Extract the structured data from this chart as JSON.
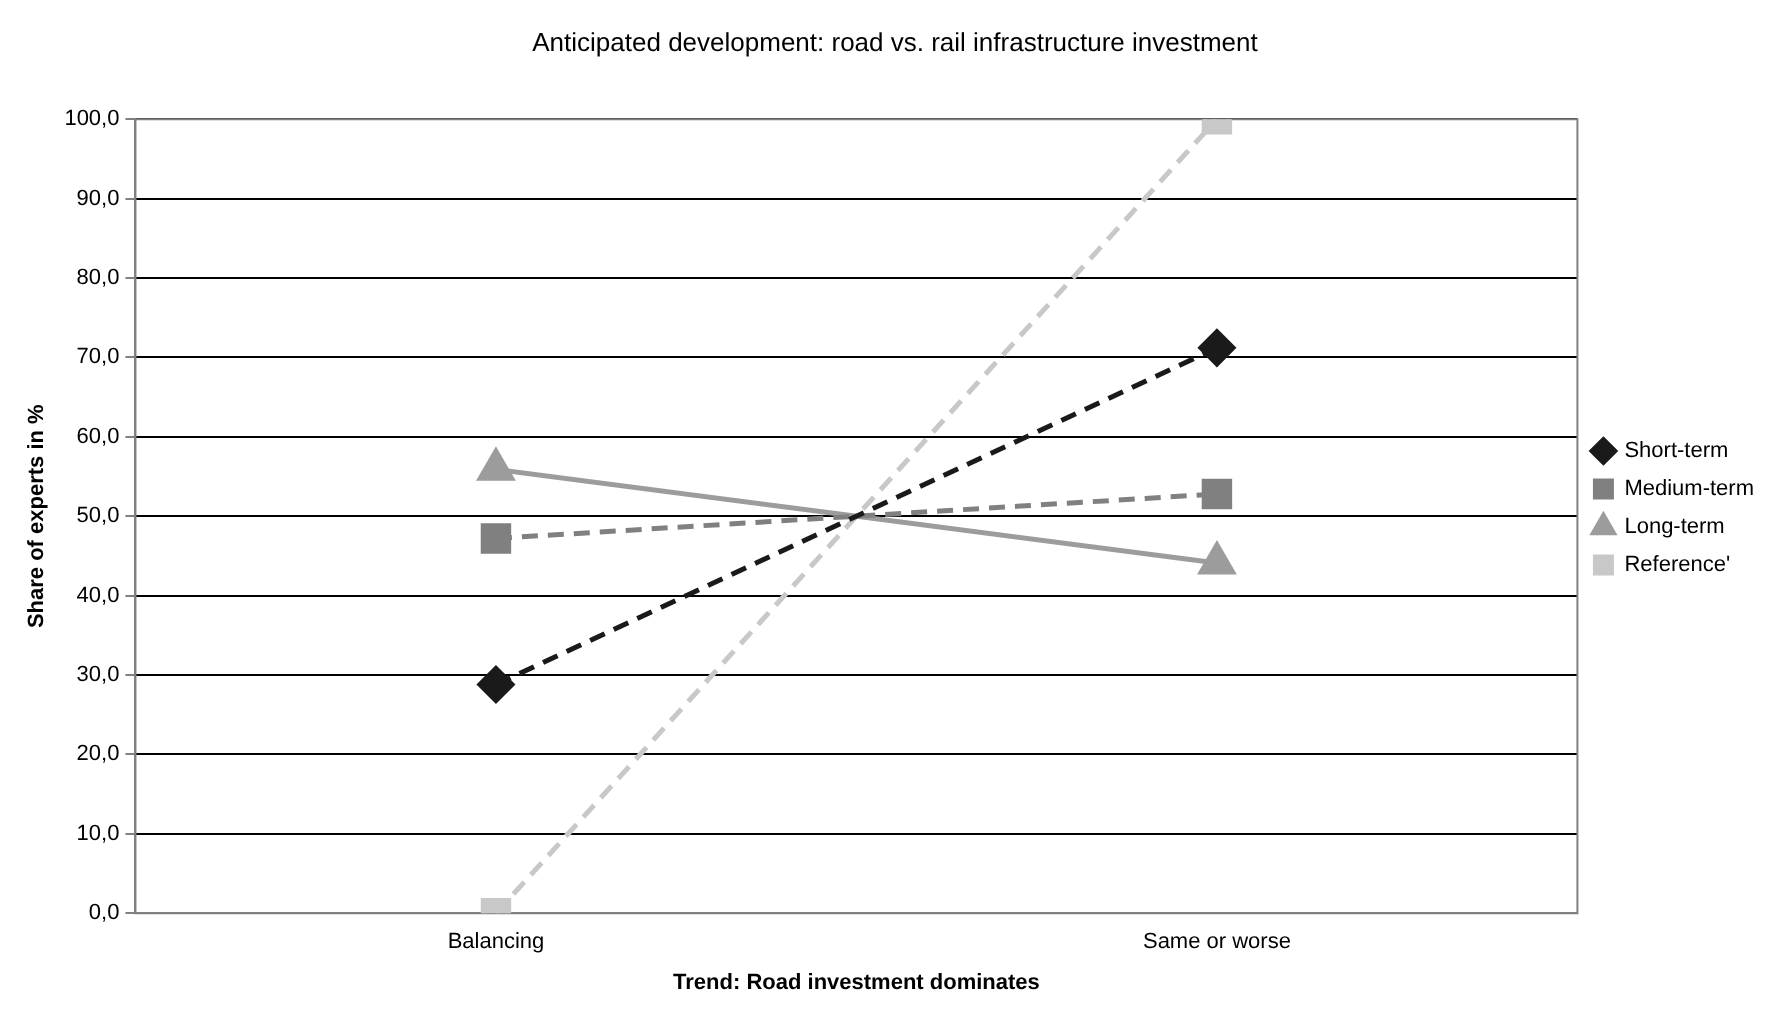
{
  "chart_data": {
    "type": "line",
    "title": "Anticipated development: road vs. rail infrastructure investment",
    "xlabel": "Trend: Road investment dominates",
    "ylabel": "Share of experts in %",
    "categories": [
      "Balancing",
      "Same or worse"
    ],
    "series": [
      {
        "name": "Short-term",
        "color": "#1a1a1a",
        "values": [
          28.8,
          71.2
        ],
        "marker": "diamond",
        "line_style": "dashed"
      },
      {
        "name": "Medium-term",
        "color": "#808080",
        "values": [
          47.2,
          52.8
        ],
        "marker": "square",
        "line_style": "dashed"
      },
      {
        "name": "Long-term",
        "color": "#9c9c9c",
        "values": [
          55.9,
          44.1
        ],
        "marker": "triangle",
        "line_style": "solid"
      },
      {
        "name": "Reference'",
        "color": "#c8c8c8",
        "values": [
          0,
          100
        ],
        "marker": "square",
        "line_style": "dashed"
      }
    ],
    "ylim": [
      0,
      100
    ],
    "yticks": [
      {
        "value": 0,
        "label": "0,0"
      },
      {
        "value": 10,
        "label": "10,0"
      },
      {
        "value": 20,
        "label": "20,0"
      },
      {
        "value": 30,
        "label": "30,0"
      },
      {
        "value": 40,
        "label": "40,0"
      },
      {
        "value": 50,
        "label": "50,0"
      },
      {
        "value": 60,
        "label": "60,0"
      },
      {
        "value": 70,
        "label": "70,0"
      },
      {
        "value": 80,
        "label": "80,0"
      },
      {
        "value": 90,
        "label": "90,0"
      },
      {
        "value": 100,
        "label": "100,0"
      }
    ],
    "grid": "y",
    "legend": "right"
  }
}
